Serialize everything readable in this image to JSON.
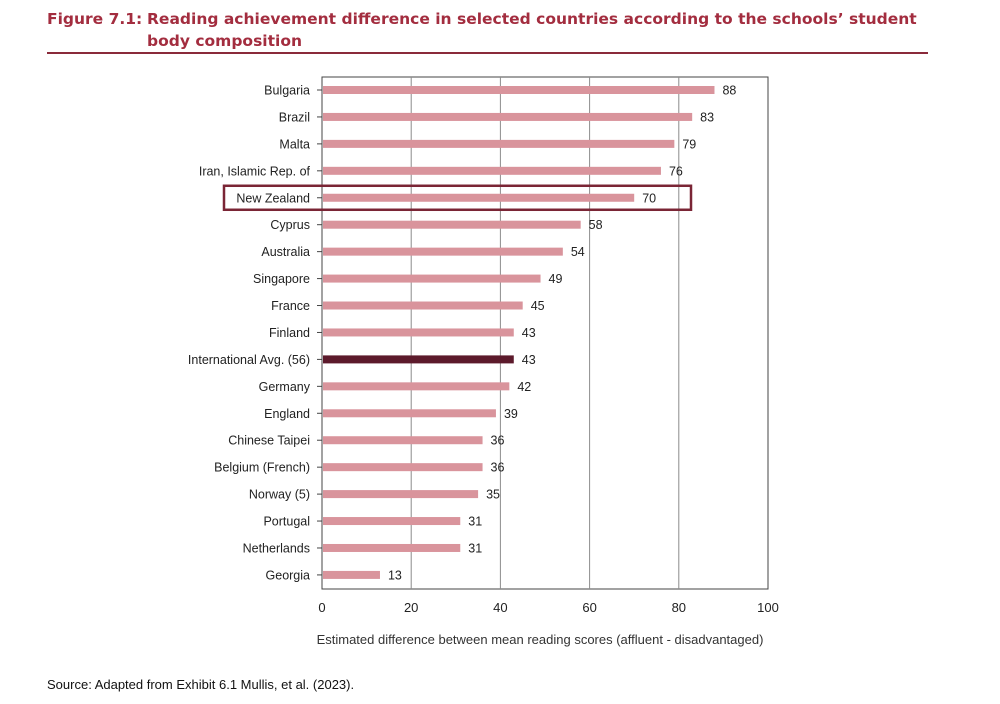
{
  "figure": {
    "number": "Figure 7.1:",
    "title_line1": "Reading achievement difference in selected countries according to the schools’ student",
    "title_line2": "body composition"
  },
  "source": "Source: Adapted from Exhibit 6.1 Mullis, et al. (2023).",
  "colors": {
    "bar": "#d9949c",
    "avg_bar": "#5c1a2b",
    "highlight_box": "#7a2535",
    "title": "#a32d3f"
  },
  "chart_data": {
    "type": "bar",
    "orientation": "horizontal",
    "categories": [
      "Bulgaria",
      "Brazil",
      "Malta",
      "Iran, Islamic Rep. of",
      "New Zealand",
      "Cyprus",
      "Australia",
      "Singapore",
      "France",
      "Finland",
      "International Avg. (56)",
      "Germany",
      "England",
      "Chinese Taipei",
      "Belgium (French)",
      "Norway (5)",
      "Portugal",
      "Netherlands",
      "Georgia"
    ],
    "values": [
      88,
      83,
      79,
      76,
      70,
      58,
      54,
      49,
      45,
      43,
      43,
      42,
      39,
      36,
      36,
      35,
      31,
      31,
      13
    ],
    "xlabel": "Estimated difference between mean reading scores (affluent - disadvantaged)",
    "xlim": [
      0,
      100
    ],
    "xticks": [
      0,
      20,
      40,
      60,
      80,
      100
    ],
    "grid": "vertical",
    "highlight": "New Zealand",
    "average_category": "International Avg. (56)"
  }
}
